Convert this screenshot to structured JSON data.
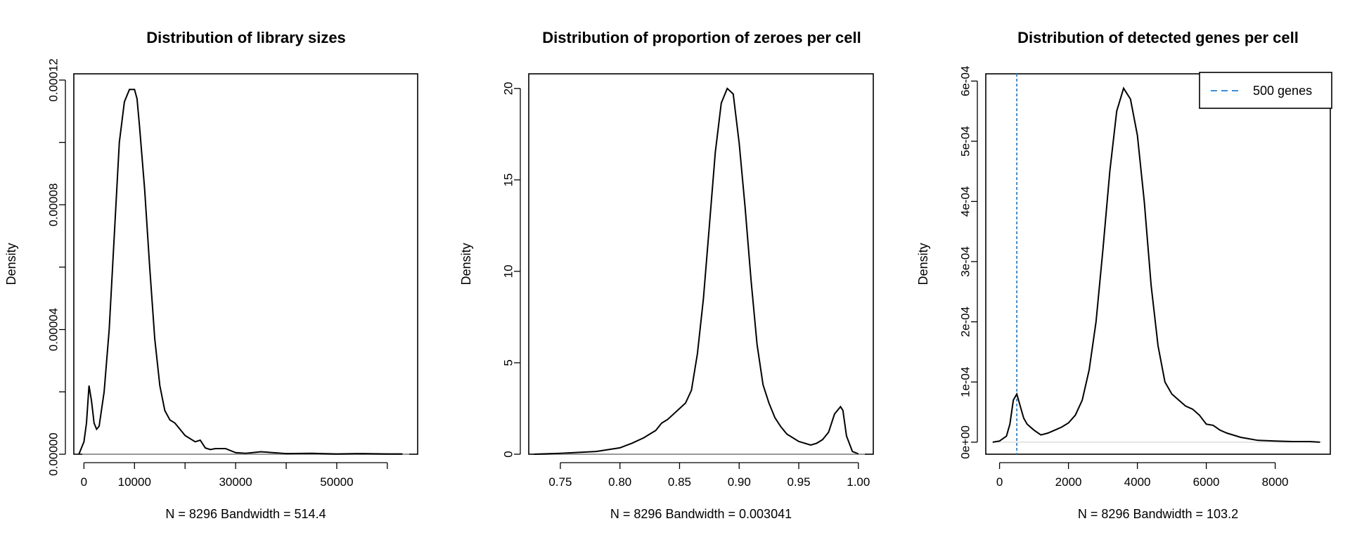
{
  "chart_data": [
    {
      "type": "line",
      "title": "Distribution of library sizes",
      "xlabel": "N = 8296   Bandwidth = 514.4",
      "ylabel": "Density",
      "xlim": [
        -2000,
        66000
      ],
      "ylim": [
        0,
        0.000122
      ],
      "xticks": [
        {
          "v": 0,
          "label": "0"
        },
        {
          "v": 10000,
          "label": "10000"
        },
        {
          "v": 30000,
          "label": "30000"
        },
        {
          "v": 50000,
          "label": "50000"
        }
      ],
      "xminor": [
        20000,
        40000,
        60000
      ],
      "yticks": [
        {
          "v": 0,
          "label": "0.00000"
        },
        {
          "v": 4e-05,
          "label": "0.00004"
        },
        {
          "v": 8e-05,
          "label": "0.00008"
        },
        {
          "v": 0.00012,
          "label": "0.00012"
        }
      ],
      "yminor": [
        2e-05,
        6e-05,
        0.0001
      ],
      "x": [
        -1000,
        0,
        500,
        1000,
        1500,
        2000,
        2500,
        3000,
        4000,
        5000,
        6000,
        7000,
        8000,
        9000,
        10000,
        10500,
        11000,
        12000,
        13000,
        14000,
        15000,
        16000,
        17000,
        18000,
        19000,
        20000,
        22000,
        23000,
        24000,
        25000,
        26000,
        28000,
        30000,
        32000,
        35000,
        40000,
        45000,
        50000,
        55000,
        60000,
        63000
      ],
      "y": [
        0.0,
        4e-06,
        1e-05,
        2.2e-05,
        1.7e-05,
        1e-05,
        8e-06,
        9e-06,
        2e-05,
        4e-05,
        7e-05,
        0.0001,
        0.000113,
        0.000117,
        0.000117,
        0.000114,
        0.000105,
        8.5e-05,
        6e-05,
        3.7e-05,
        2.2e-05,
        1.4e-05,
        1.1e-05,
        1e-05,
        8e-06,
        6e-06,
        4e-06,
        4.5e-06,
        2e-06,
        1.5e-06,
        1.8e-06,
        1.8e-06,
        5e-07,
        3e-07,
        8e-07,
        2e-07,
        3e-07,
        1e-07,
        2e-07,
        1e-07,
        1e-07
      ],
      "zero_line": true
    },
    {
      "type": "line",
      "title": "Distribution of proportion of zeroes per cell",
      "xlabel": "N = 8296   Bandwidth = 0.003041",
      "ylabel": "Density",
      "xlim": [
        0.7235,
        1.0125
      ],
      "ylim": [
        0,
        20.8
      ],
      "xticks": [
        {
          "v": 0.75,
          "label": "0.75"
        },
        {
          "v": 0.8,
          "label": "0.80"
        },
        {
          "v": 0.85,
          "label": "0.85"
        },
        {
          "v": 0.9,
          "label": "0.90"
        },
        {
          "v": 0.95,
          "label": "0.95"
        },
        {
          "v": 1.0,
          "label": "1.00"
        }
      ],
      "xminor": [],
      "yticks": [
        {
          "v": 0,
          "label": "0"
        },
        {
          "v": 5,
          "label": "5"
        },
        {
          "v": 10,
          "label": "10"
        },
        {
          "v": 15,
          "label": "15"
        },
        {
          "v": 20,
          "label": "20"
        }
      ],
      "yminor": [],
      "x": [
        0.728,
        0.75,
        0.78,
        0.8,
        0.81,
        0.82,
        0.825,
        0.83,
        0.835,
        0.84,
        0.845,
        0.85,
        0.855,
        0.86,
        0.865,
        0.87,
        0.875,
        0.88,
        0.885,
        0.89,
        0.895,
        0.9,
        0.905,
        0.91,
        0.915,
        0.92,
        0.925,
        0.93,
        0.935,
        0.94,
        0.95,
        0.96,
        0.965,
        0.97,
        0.975,
        0.98,
        0.985,
        0.987,
        0.99,
        0.995,
        1.0
      ],
      "y": [
        0.0,
        0.05,
        0.15,
        0.35,
        0.6,
        0.9,
        1.1,
        1.3,
        1.7,
        1.9,
        2.2,
        2.5,
        2.8,
        3.5,
        5.5,
        8.5,
        12.5,
        16.5,
        19.2,
        20.0,
        19.7,
        17.0,
        13.5,
        9.5,
        6.0,
        3.8,
        2.8,
        2.0,
        1.5,
        1.1,
        0.7,
        0.5,
        0.6,
        0.8,
        1.2,
        2.2,
        2.6,
        2.4,
        1.0,
        0.15,
        0.02
      ],
      "zero_line": true
    },
    {
      "type": "line",
      "title": "Distribution of detected genes per cell",
      "xlabel": "N = 8296   Bandwidth = 103.2",
      "ylabel": "Density",
      "xlim": [
        -400,
        9600
      ],
      "ylim": [
        -2e-05,
        0.000612
      ],
      "xticks": [
        {
          "v": 0,
          "label": "0"
        },
        {
          "v": 2000,
          "label": "2000"
        },
        {
          "v": 4000,
          "label": "4000"
        },
        {
          "v": 6000,
          "label": "6000"
        },
        {
          "v": 8000,
          "label": "8000"
        }
      ],
      "xminor": [],
      "yticks": [
        {
          "v": 0,
          "label": "0e+00"
        },
        {
          "v": 0.0001,
          "label": "1e-04"
        },
        {
          "v": 0.0002,
          "label": "2e-04"
        },
        {
          "v": 0.0003,
          "label": "3e-04"
        },
        {
          "v": 0.0004,
          "label": "4e-04"
        },
        {
          "v": 0.0005,
          "label": "5e-04"
        },
        {
          "v": 0.0006,
          "label": "6e-04"
        }
      ],
      "yminor": [],
      "x": [
        -200,
        0,
        200,
        300,
        400,
        500,
        600,
        700,
        800,
        1000,
        1200,
        1400,
        1600,
        1800,
        2000,
        2200,
        2400,
        2600,
        2800,
        3000,
        3200,
        3400,
        3600,
        3800,
        4000,
        4200,
        4400,
        4600,
        4800,
        5000,
        5200,
        5400,
        5600,
        5800,
        6000,
        6200,
        6400,
        6600,
        7000,
        7500,
        8000,
        8500,
        9000,
        9300
      ],
      "y": [
        0.0,
        2e-06,
        1e-05,
        3e-05,
        7e-05,
        8e-05,
        6e-05,
        4e-05,
        3e-05,
        2e-05,
        1.2e-05,
        1.5e-05,
        2e-05,
        2.5e-05,
        3.2e-05,
        4.5e-05,
        7e-05,
        0.00012,
        0.0002,
        0.00032,
        0.00045,
        0.00055,
        0.000588,
        0.00057,
        0.00051,
        0.0004,
        0.00026,
        0.00016,
        0.0001,
        8e-05,
        7e-05,
        6e-05,
        5.5e-05,
        4.5e-05,
        3e-05,
        2.8e-05,
        2e-05,
        1.5e-05,
        8e-06,
        3e-06,
        2e-06,
        1e-06,
        1e-06,
        0.0
      ],
      "zero_line": true,
      "vline": {
        "x": 500,
        "color": "#3a8fd9"
      },
      "legend": {
        "label": "500 genes",
        "position": "top-right",
        "color": "#3a8fd9"
      }
    }
  ]
}
